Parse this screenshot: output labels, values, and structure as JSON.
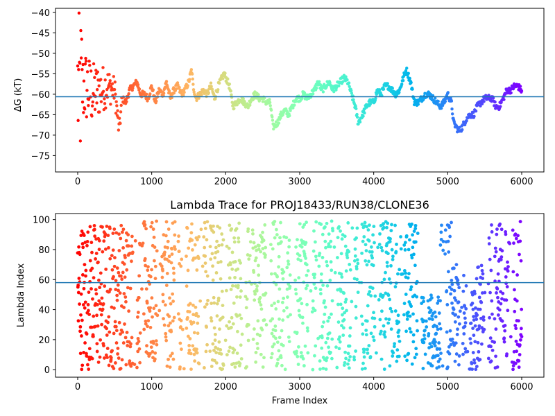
{
  "chart_data": [
    {
      "type": "scatter",
      "title": "",
      "xlabel": "",
      "ylabel": "ΔG (kT)",
      "xlim": [
        -300,
        6300
      ],
      "ylim": [
        -79,
        -39
      ],
      "xticks": [
        0,
        1000,
        2000,
        3000,
        4000,
        5000,
        6000
      ],
      "yticks": [
        -75,
        -70,
        -65,
        -60,
        -55,
        -50,
        -45,
        -40
      ],
      "hline": -60.6,
      "colormap": "rainbow (red at frame 0 to violet at frame 6000)",
      "grid": false,
      "series_trace": {
        "description_x": [
          0,
          100,
          200,
          300,
          400,
          500,
          560,
          600,
          650,
          700,
          750,
          800,
          850,
          900,
          950,
          1000,
          1050,
          1100,
          1150,
          1200,
          1250,
          1300,
          1350,
          1400,
          1450,
          1500,
          1540,
          1560,
          1600,
          1650,
          1700,
          1750,
          1800,
          1850,
          1900,
          1950,
          1980,
          2050,
          2100,
          2150,
          2200,
          2250,
          2300,
          2350,
          2400,
          2450,
          2500,
          2550,
          2600,
          2640,
          2700,
          2750,
          2800,
          2850,
          2900,
          2950,
          3000,
          3050,
          3100,
          3150,
          3200,
          3250,
          3300,
          3350,
          3400,
          3450,
          3500,
          3550,
          3600,
          3650,
          3700,
          3750,
          3790,
          3850,
          3900,
          3950,
          4000,
          4050,
          4100,
          4150,
          4200,
          4250,
          4300,
          4350,
          4400,
          4440,
          4500,
          4550,
          4600,
          4650,
          4700,
          4750,
          4800,
          4850,
          4900,
          4950,
          5000,
          5050,
          5080,
          5150,
          5200,
          5250,
          5300,
          5350,
          5400,
          5450,
          5500,
          5550,
          5600,
          5650,
          5700,
          5750,
          5800,
          5850,
          5900,
          5950,
          5990
        ],
        "values": [
          -60,
          -58,
          -60,
          -59,
          -58,
          -59,
          -69,
          -61,
          -62,
          -59,
          -58,
          -57,
          -60,
          -60,
          -61,
          -58,
          -62,
          -59,
          -60,
          -57,
          -61,
          -59,
          -58,
          -60,
          -59,
          -57,
          -54,
          -58,
          -61,
          -60,
          -59,
          -60,
          -58,
          -61,
          -58,
          -56,
          -55,
          -58,
          -63,
          -62,
          -61,
          -62,
          -63,
          -61,
          -60,
          -61,
          -61,
          -62,
          -62,
          -68,
          -67,
          -65,
          -64,
          -65,
          -63,
          -61,
          -61,
          -60,
          -61,
          -60,
          -59,
          -57,
          -59,
          -58,
          -57,
          -59,
          -58,
          -57,
          -56,
          -57,
          -60,
          -63,
          -67,
          -65,
          -63,
          -62,
          -62,
          -59,
          -60,
          -58,
          -58,
          -59,
          -60,
          -59,
          -56,
          -54,
          -57,
          -62,
          -62,
          -61,
          -60,
          -60,
          -61,
          -62,
          -63,
          -62,
          -60,
          -62,
          -67,
          -69,
          -68,
          -66,
          -65,
          -65,
          -63,
          -62,
          -61,
          -61,
          -61,
          -63,
          -63,
          -61,
          -59,
          -59,
          -58,
          -58,
          -59
        ]
      }
    },
    {
      "type": "scatter",
      "title": "Lambda Trace for PROJ18433/RUN38/CLONE36",
      "xlabel": "Frame Index",
      "ylabel": "Lambda Index",
      "xlim": [
        -300,
        6300
      ],
      "ylim": [
        -5,
        104
      ],
      "xticks": [
        0,
        1000,
        2000,
        3000,
        4000,
        5000,
        6000
      ],
      "yticks": [
        0,
        20,
        40,
        60,
        80,
        100
      ],
      "hline": 58,
      "colormap": "rainbow (red at frame 0 to violet at frame 6000)",
      "grid": false,
      "value_range": [
        0,
        99
      ]
    }
  ],
  "colors": {
    "hline": "#1f77b4",
    "axes": "#000000",
    "background": "#ffffff"
  }
}
